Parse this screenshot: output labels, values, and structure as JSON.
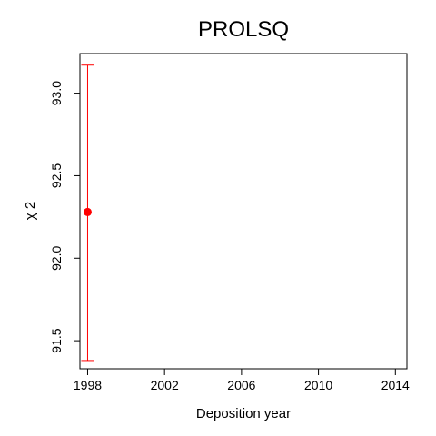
{
  "chart_data": {
    "type": "scatter",
    "title": "PROLSQ",
    "xlabel": "Deposition year",
    "ylabel": "χ 2",
    "xlim": [
      1997.6,
      2014.6
    ],
    "ylim": [
      91.33,
      93.24
    ],
    "x_ticks": [
      1998,
      2002,
      2006,
      2010,
      2014
    ],
    "x_tick_labels": [
      "1998",
      "2002",
      "2006",
      "2010",
      "2014"
    ],
    "y_ticks": [
      91.5,
      92.0,
      92.5,
      93.0
    ],
    "y_tick_labels": [
      "91.5",
      "92.0",
      "92.5",
      "93.0"
    ],
    "grid": false,
    "legend": "none",
    "series": [
      {
        "points": [
          {
            "x": 1998,
            "y": 92.28,
            "y_low": 91.38,
            "y_high": 93.17
          }
        ],
        "color": "#ff0000"
      }
    ]
  }
}
